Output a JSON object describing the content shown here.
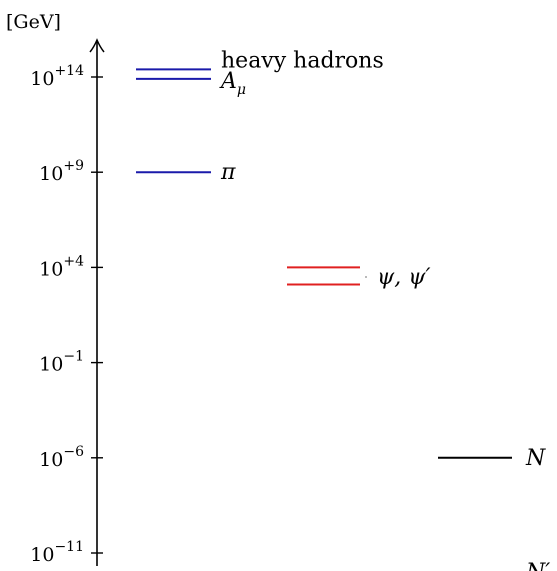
{
  "axis": {
    "unit": "[GeV]",
    "ticks": [
      {
        "base": "10",
        "exp": "+14",
        "value": 14
      },
      {
        "base": "10",
        "exp": "+9",
        "value": 9
      },
      {
        "base": "10",
        "exp": "+4",
        "value": 4
      },
      {
        "base": "10",
        "exp": "−1",
        "value": -1
      },
      {
        "base": "10",
        "exp": "−6",
        "value": -6
      },
      {
        "base": "10",
        "exp": "−11",
        "value": -11
      }
    ]
  },
  "levels": [
    {
      "label": "heavy hadrons",
      "log_value": 14.4,
      "color": "#1a1aaa",
      "column": 0,
      "italic": false
    },
    {
      "label": "A",
      "sub": "μ",
      "log_value": 13.9,
      "color": "#1a1aaa",
      "column": 0,
      "italic": true
    },
    {
      "label": "π",
      "log_value": 9.0,
      "color": "#1a1aaa",
      "column": 0,
      "italic": true
    },
    {
      "label": "ψ, ψ′",
      "log_value": 4.0,
      "color": "#e02020",
      "column": 1,
      "italic": true
    },
    {
      "label": "",
      "log_value": 3.1,
      "color": "#e02020",
      "column": 1,
      "italic": true
    },
    {
      "label": "N",
      "log_value": -6.0,
      "color": "#000000",
      "column": 2,
      "italic": true
    },
    {
      "label": "N′",
      "log_value": -12.0,
      "color": "#000000",
      "column": 2,
      "italic": true
    }
  ]
}
